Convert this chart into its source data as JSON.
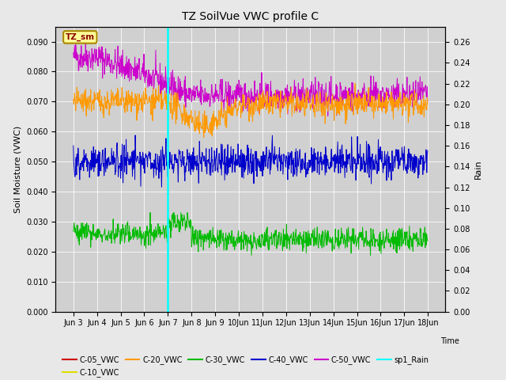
{
  "title": "TZ SoilVue VWC profile C",
  "xlabel": "Time",
  "ylabel_left": "Soil Moisture (VWC)",
  "ylabel_right": "Rain",
  "ylim_left": [
    0.0,
    0.095
  ],
  "ylim_right": [
    0.0,
    0.275
  ],
  "yticks_left": [
    0.0,
    0.01,
    0.02,
    0.03,
    0.04,
    0.05,
    0.06,
    0.07,
    0.08,
    0.09
  ],
  "yticks_right": [
    0.0,
    0.02,
    0.04,
    0.06,
    0.08,
    0.1,
    0.12,
    0.14,
    0.16,
    0.18,
    0.2,
    0.22,
    0.24,
    0.26
  ],
  "n_points": 900,
  "vline_color": "cyan",
  "background_color": "#e8e8e8",
  "plot_bg_color": "#d0d0d0",
  "title_fontsize": 10,
  "tick_fontsize": 7,
  "label_fontsize": 8,
  "legend_fontsize": 7,
  "series_colors": {
    "C-05_VWC": "#cc0000",
    "C-10_VWC": "#dddd00",
    "C-20_VWC": "#ff9900",
    "C-30_VWC": "#00bb00",
    "C-40_VWC": "#0000cc",
    "C-50_VWC": "#cc00cc"
  },
  "tick_labels": [
    "Jun 3",
    "Jun 4",
    "Jun 5",
    "Jun 6",
    "Jun 7",
    "Jun 8",
    "Jun 9",
    "10Jun",
    "11Jun",
    "12Jun",
    "13Jun",
    "14Jun",
    "15Jun",
    "16Jun",
    "17Jun",
    "18Jun"
  ]
}
